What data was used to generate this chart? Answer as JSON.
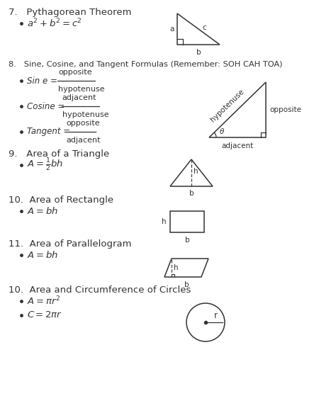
{
  "bg_color": "#ffffff",
  "text_color": "#333333",
  "lw": 1.1,
  "sections": [
    {
      "num": "7.",
      "title": "Pythagorean Theorem"
    },
    {
      "num": "8.",
      "title": "Sine, Cosine, and Tangent Formulas (Remember: SOH CAH TOA)"
    },
    {
      "num": "9.",
      "title": "Area of a Triangle"
    },
    {
      "num": "10.",
      "title": "Area of Rectangle"
    },
    {
      "num": "11.",
      "title": "Area of Parallelogram"
    },
    {
      "num": "10.",
      "title": "Area and Circumference of Circles"
    }
  ]
}
